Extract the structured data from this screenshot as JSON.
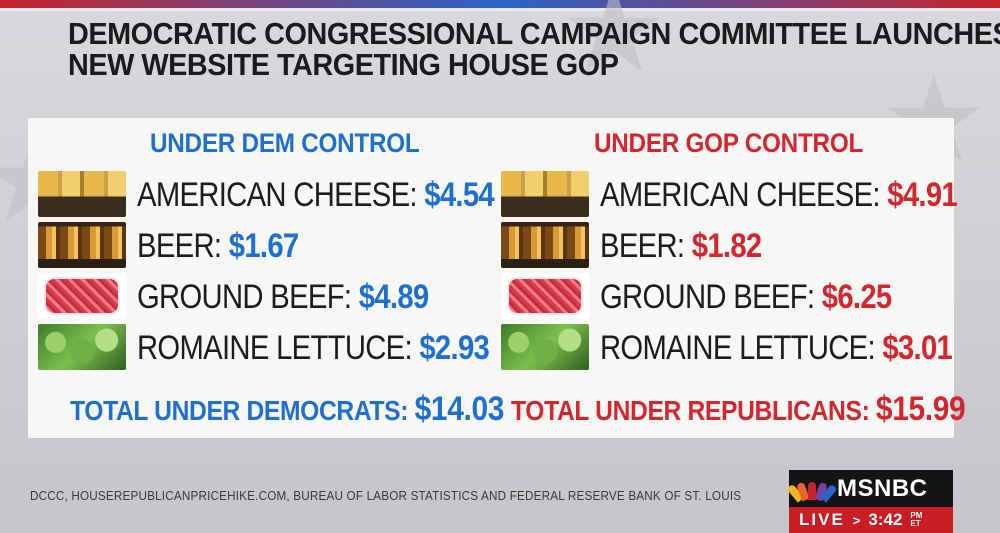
{
  "headline": {
    "line1": "DEMOCRATIC CONGRESSIONAL CAMPAIGN COMMITTEE LAUNCHES",
    "line2": "NEW WEBSITE TARGETING HOUSE GOP"
  },
  "dem": {
    "title": "UNDER DEM CONTROL",
    "items": [
      {
        "label": "AMERICAN CHEESE: ",
        "price": "$4.54",
        "image": "cheese"
      },
      {
        "label": "BEER: ",
        "price": "$1.67",
        "image": "beer"
      },
      {
        "label": "GROUND BEEF: ",
        "price": "$4.89",
        "image": "ground-beef"
      },
      {
        "label": "ROMAINE LETTUCE: ",
        "price": "$2.93",
        "image": "lettuce"
      }
    ],
    "total_label": "TOTAL UNDER DEMOCRATS: ",
    "total_value": "$14.03"
  },
  "gop": {
    "title": "UNDER GOP CONTROL",
    "items": [
      {
        "label": "AMERICAN CHEESE: ",
        "price": "$4.91",
        "image": "cheese"
      },
      {
        "label": "BEER: ",
        "price": "$1.82",
        "image": "beer"
      },
      {
        "label": "GROUND BEEF: ",
        "price": "$6.25",
        "image": "ground-beef"
      },
      {
        "label": "ROMAINE LETTUCE: ",
        "price": "$3.01",
        "image": "lettuce"
      }
    ],
    "total_label": "TOTAL UNDER REPUBLICANS: ",
    "total_value": "$15.99"
  },
  "source": "DCCC, HOUSEREPUBLICANPRICEHIKE.COM, BUREAU OF LABOR STATISTICS AND FEDERAL RESERVE BANK OF ST. LOUIS",
  "network": {
    "name": "MSNBC",
    "live": "LIVE",
    "arrow": ">",
    "time": "3:42",
    "ampm_top": "PM",
    "ampm_bottom": "ET"
  },
  "colors": {
    "dem_blue": "#1f6fd1",
    "gop_red": "#d3272f",
    "live_red": "#c81d25"
  }
}
